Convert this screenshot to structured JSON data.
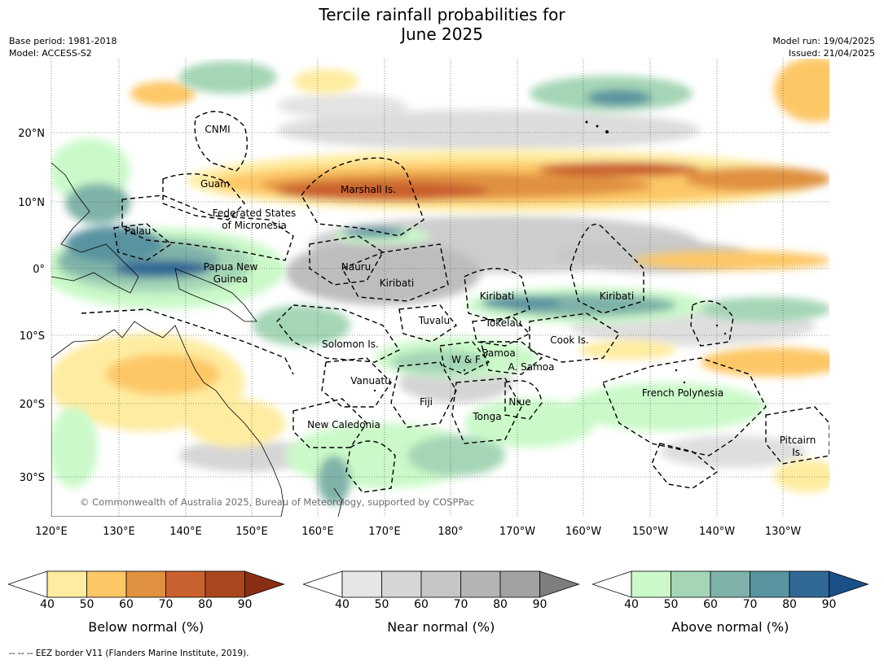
{
  "title": {
    "line1": "Tercile rainfall probabilities for",
    "line2": "June 2025"
  },
  "meta": {
    "base_period": "Base period: 1981-2018",
    "model": "Model: ACCESS-S2",
    "model_run": "Model run: 19/04/2025",
    "issued": "Issued: 21/04/2025"
  },
  "map": {
    "lat_ticks": [
      "20°N",
      "10°N",
      "0°",
      "10°S",
      "20°S",
      "30°S"
    ],
    "lon_ticks": [
      "120°E",
      "130°E",
      "140°E",
      "150°E",
      "160°E",
      "170°E",
      "180°",
      "170°W",
      "160°W",
      "150°W",
      "140°W",
      "130°W"
    ],
    "copyright": "© Commonwealth of Australia 2025, Bureau of Meteorology, supported by COSPPac",
    "regions": [
      {
        "name": "CNMI"
      },
      {
        "name": "Guam"
      },
      {
        "name": "Marshall Is."
      },
      {
        "name": "Federated States of Micronesia"
      },
      {
        "name": "Palau"
      },
      {
        "name": "Papua New Guinea"
      },
      {
        "name": "Nauru"
      },
      {
        "name": "Kiribati"
      },
      {
        "name": "Kiribati"
      },
      {
        "name": "Kiribati"
      },
      {
        "name": "Tuvalu"
      },
      {
        "name": "Tokelau"
      },
      {
        "name": "Solomon Is."
      },
      {
        "name": "W & F"
      },
      {
        "name": "Samoa"
      },
      {
        "name": "A. Samoa"
      },
      {
        "name": "Cook Is."
      },
      {
        "name": "Vanuatu"
      },
      {
        "name": "Fiji"
      },
      {
        "name": "Niue"
      },
      {
        "name": "Tonga"
      },
      {
        "name": "French Polynesia"
      },
      {
        "name": "New Caledonia"
      },
      {
        "name": "Pitcairn Is."
      }
    ]
  },
  "colorbars": [
    {
      "label": "Below normal (%)",
      "ticks": [
        "40",
        "50",
        "60",
        "70",
        "80",
        "90"
      ],
      "colors": [
        "#ffffff",
        "#feeca0",
        "#fdc766",
        "#e0913f",
        "#c9612e",
        "#aa4620",
        "#8a2e15"
      ]
    },
    {
      "label": "Near normal (%)",
      "ticks": [
        "40",
        "50",
        "60",
        "70",
        "80",
        "90"
      ],
      "colors": [
        "#ffffff",
        "#e6e6e6",
        "#d6d6d6",
        "#c6c6c6",
        "#b4b4b4",
        "#a2a2a2",
        "#7e7e7e"
      ]
    },
    {
      "label": "Above normal (%)",
      "ticks": [
        "40",
        "50",
        "60",
        "70",
        "80",
        "90"
      ],
      "colors": [
        "#ffffff",
        "#cbf9c9",
        "#a4d6b6",
        "#7fb3a9",
        "#5a93a0",
        "#326896",
        "#1a4f88"
      ]
    }
  ],
  "footnote": "--  --  -- EEZ border V11 (Flanders Marine Institute, 2019)."
}
